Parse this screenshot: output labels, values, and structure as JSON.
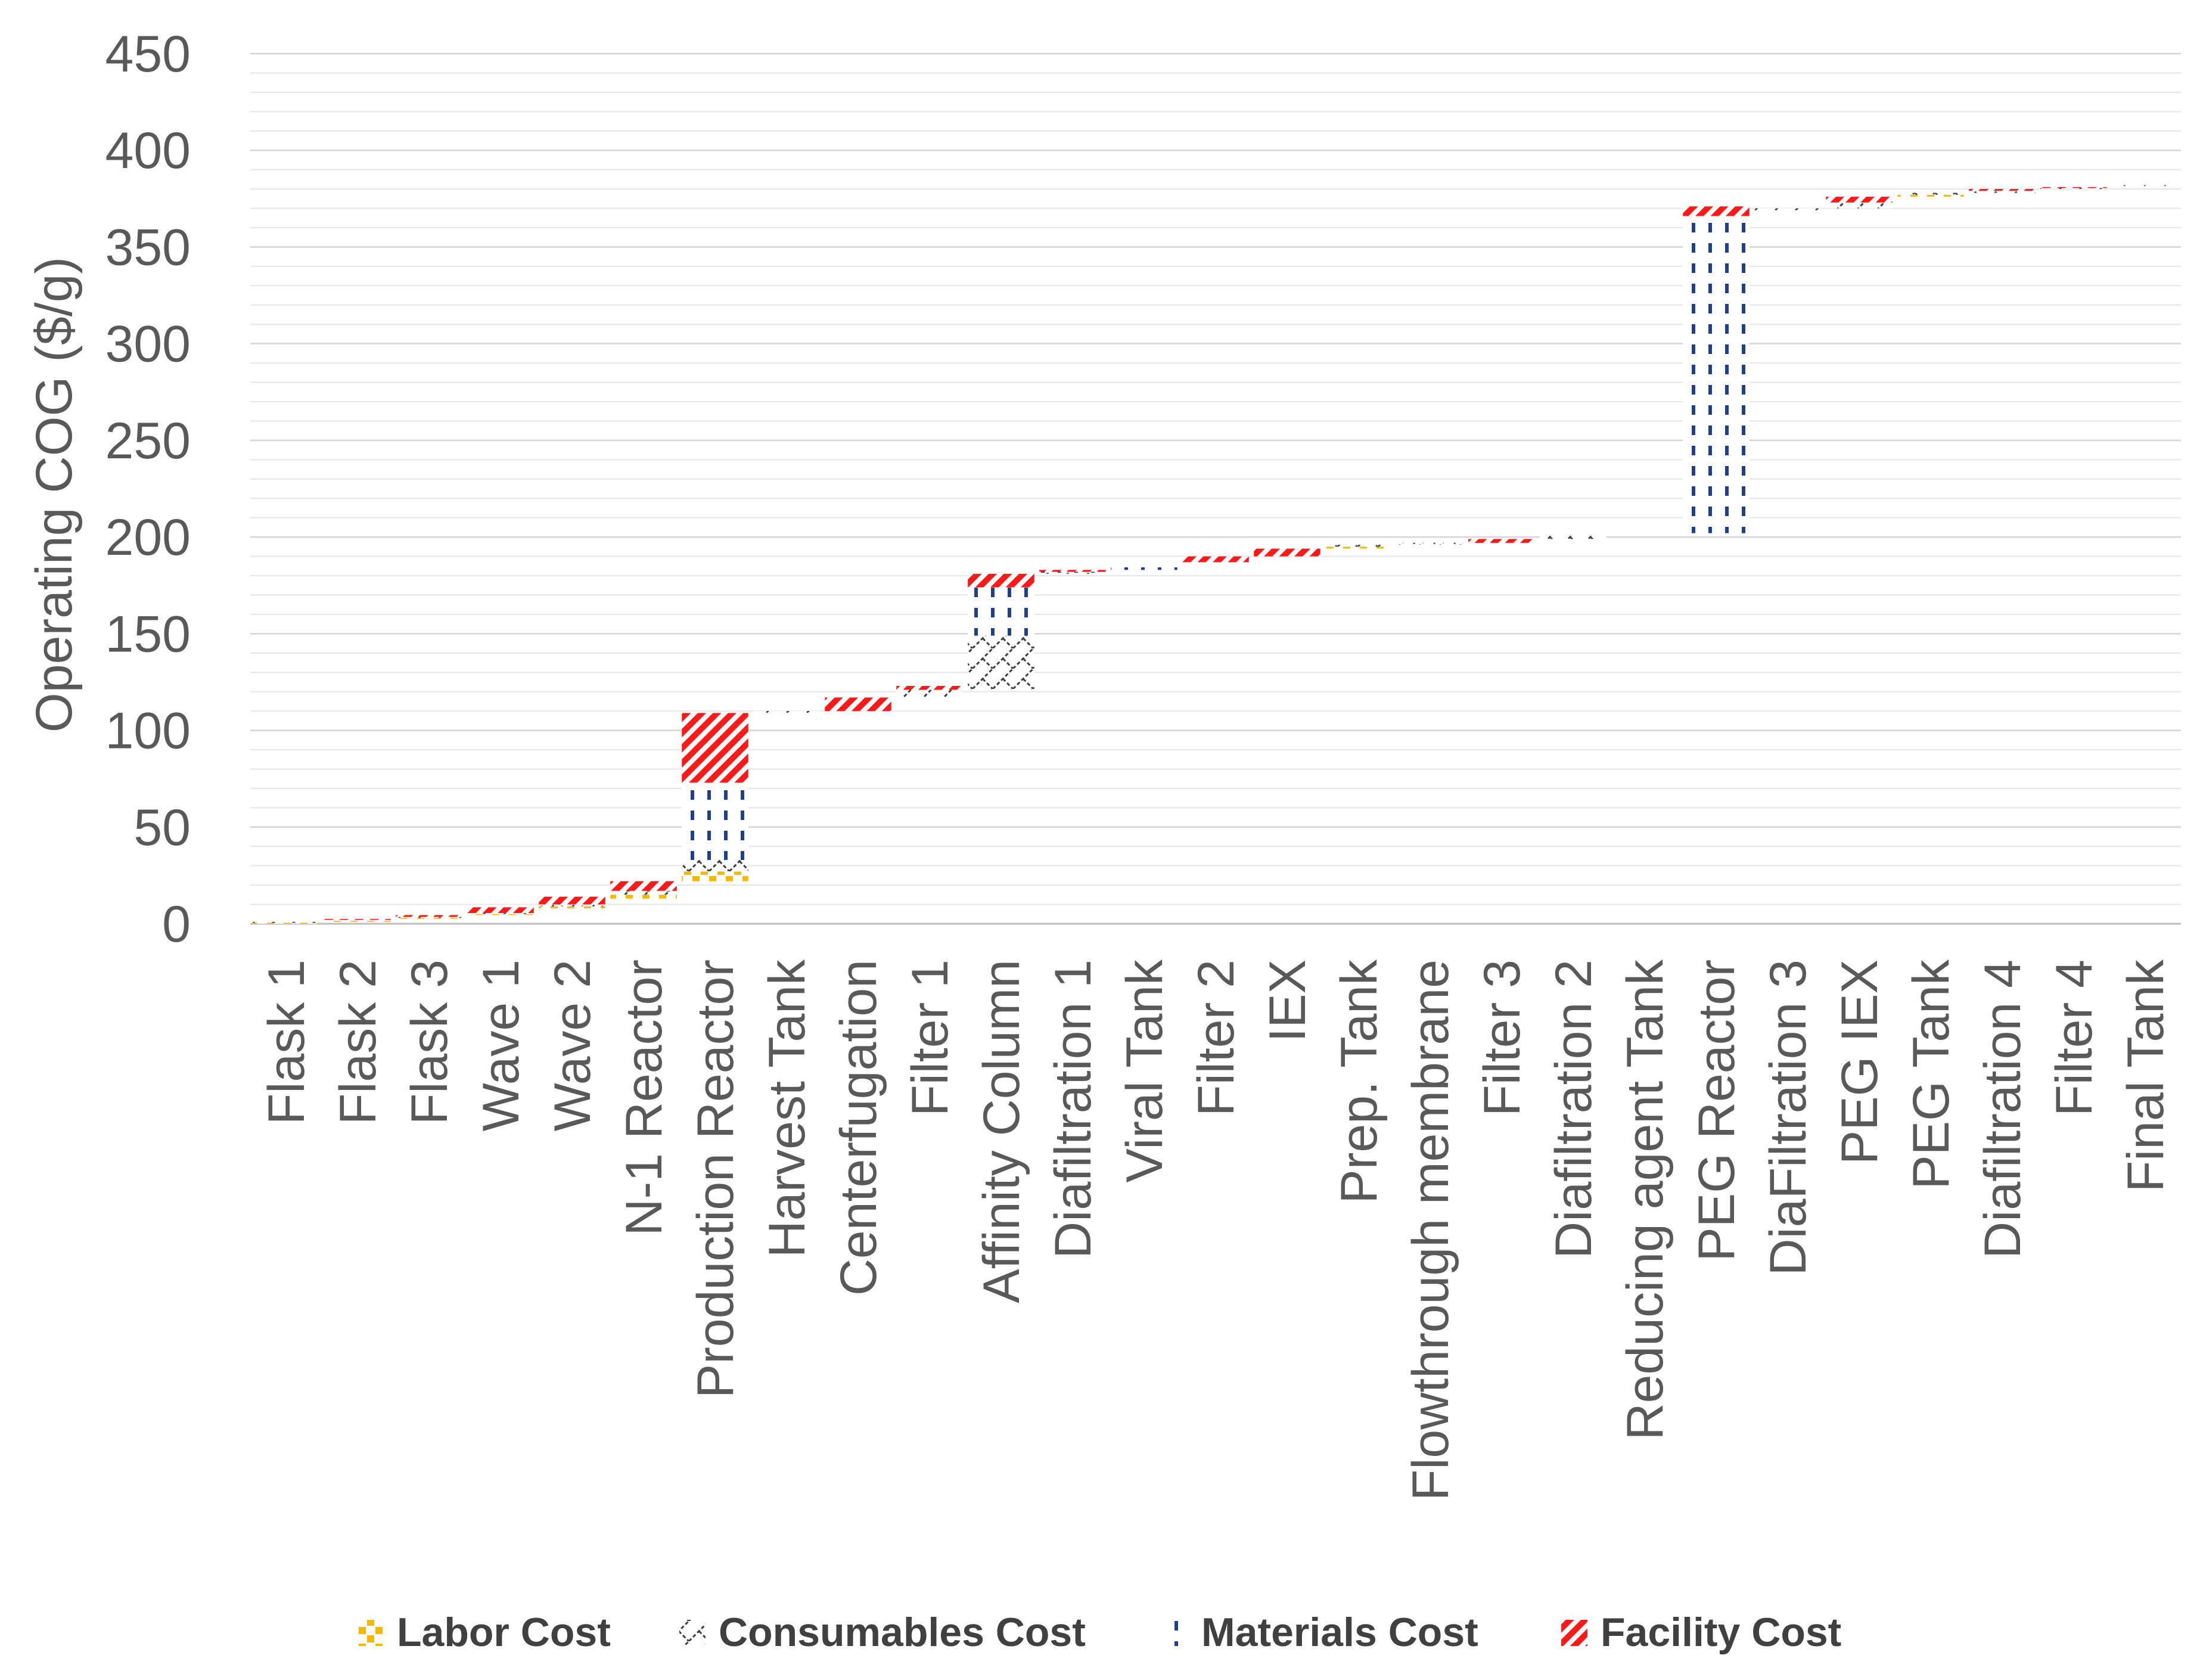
{
  "chart_data": {
    "type": "bar",
    "subtype": "stacked-waterfall",
    "title": "",
    "xlabel": "",
    "ylabel": "Operating COG ($/g)",
    "ylim": [
      0,
      450
    ],
    "ytick_step": 50,
    "minor_grid_step": 10,
    "grid": true,
    "legend_position": "bottom",
    "categories": [
      "Flask 1",
      "Flask 2",
      "Flask 3",
      "Wave 1",
      "Wave 2",
      "N-1 Reactor",
      "Production Reactor",
      "Harvest Tank",
      "Centerfugation",
      "Filter 1",
      "Affinity Column",
      "Diafiltration 1",
      "Viral Tank",
      "Filter 2",
      "IEX",
      "Prep. Tank",
      "Flowthrough membrane",
      "Filter 3",
      "Diafiltration 2",
      "Reducing agent Tank",
      "PEG Reactor",
      "DiaFiltration 3",
      "PEG IEX",
      "PEG Tank",
      "Diafiltration 4",
      "Filter 4",
      "Final Tank"
    ],
    "base": [
      0,
      1,
      2.5,
      4.5,
      8,
      13,
      22,
      109,
      110,
      117,
      121,
      181,
      183,
      187,
      190,
      194,
      196,
      197,
      199,
      201,
      202,
      369,
      370,
      376,
      378,
      380,
      381
    ],
    "series": [
      {
        "name": "Labor Cost",
        "color": "#f5b800",
        "values": [
          0.5,
          0.5,
          0.5,
          0.5,
          1,
          2,
          5,
          0,
          0,
          0,
          0,
          0,
          0,
          0,
          0,
          1,
          0,
          0,
          0,
          0,
          0,
          0,
          0,
          1,
          0,
          0,
          0
        ]
      },
      {
        "name": "Consumables Cost",
        "color": "#404040",
        "values": [
          0.5,
          0.5,
          0.5,
          0.5,
          1,
          2,
          6,
          1,
          0,
          4,
          28,
          0.5,
          0,
          0,
          0,
          1,
          1,
          0,
          2,
          0,
          0,
          1,
          3,
          1,
          1,
          0.5,
          1
        ]
      },
      {
        "name": "Materials Cost",
        "color": "#1f3f8f",
        "values": [
          0,
          0,
          0,
          0,
          0,
          0,
          40,
          0,
          0,
          0,
          25,
          0.5,
          4,
          0,
          0,
          0,
          0,
          0,
          0,
          0,
          164,
          0,
          0,
          0,
          0,
          0,
          0
        ]
      },
      {
        "name": "Facility Cost",
        "color": "#ff1a1a",
        "values": [
          0,
          0.5,
          1,
          3,
          4,
          5,
          36,
          0,
          7,
          2,
          7,
          1,
          0,
          3,
          4,
          0,
          0,
          2,
          0,
          0,
          5,
          0,
          3,
          0,
          1,
          0.5,
          0
        ]
      }
    ]
  }
}
